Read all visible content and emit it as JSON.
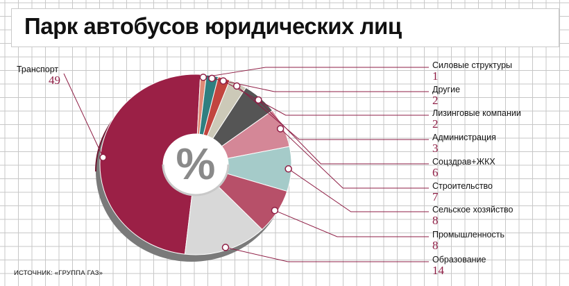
{
  "title": "Парк автобусов юридических лиц",
  "center_symbol": "%",
  "source": "ИСТОЧНИК: «ГРУППА ГАЗ»",
  "colors": {
    "grid": "#c7c7c7",
    "leader": "#8e1d44",
    "value_text": "#8e1d44"
  },
  "chart_data": {
    "type": "pie",
    "title": "Парк автобусов юридических лиц",
    "unit": "%",
    "series": [
      {
        "label": "Транспорт",
        "value": 49,
        "color": "#9b2046"
      },
      {
        "label": "Силовые структуры",
        "value": 1,
        "color": "#e08a76"
      },
      {
        "label": "Другие",
        "value": 2,
        "color": "#2f7f80"
      },
      {
        "label": "Лизинговые компании",
        "value": 2,
        "color": "#c2453f"
      },
      {
        "label": "Администрация",
        "value": 3,
        "color": "#ccc9b8"
      },
      {
        "label": "Соцздрав+ЖКХ",
        "value": 6,
        "color": "#555555"
      },
      {
        "label": "Строительство",
        "value": 7,
        "color": "#d48797"
      },
      {
        "label": "Сельское хозяйство",
        "value": 8,
        "color": "#a5cbc9"
      },
      {
        "label": "Промышленность",
        "value": 8,
        "color": "#b75069"
      },
      {
        "label": "Образование",
        "value": 14,
        "color": "#d8d8d8"
      }
    ]
  }
}
